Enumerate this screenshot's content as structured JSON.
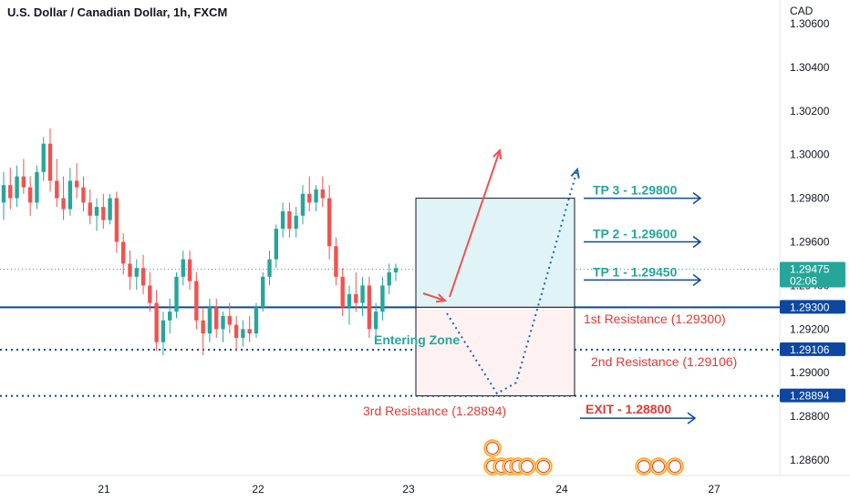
{
  "header": {
    "symbol_title": "U.S. Dollar / Canadian Dollar, 1h, FXCM"
  },
  "axis": {
    "currency": "CAD"
  },
  "colors": {
    "up": "#26a69a",
    "down": "#ef5350",
    "blue": "#0d47a1",
    "teal_text": "#26a69a",
    "red_text": "#e53935"
  },
  "chart_data": {
    "type": "candlestick",
    "title": "U.S. Dollar / Canadian Dollar, 1h, FXCM",
    "ylabel": "CAD",
    "ylim": [
      1.2848,
      1.3068
    ],
    "y_ticks": [
      "1.30600",
      "1.30400",
      "1.30200",
      "1.30000",
      "1.29800",
      "1.29600",
      "1.29400",
      "1.29200",
      "1.29000",
      "1.28800",
      "1.28600"
    ],
    "x_ticks": [
      "21",
      "22",
      "23",
      "24",
      "27"
    ],
    "current_price": "1.29475",
    "countdown": "02:06",
    "price_labels": [
      "1.29300",
      "1.29106",
      "1.28894"
    ],
    "levels": [
      {
        "label": "1st Resistance (1.29300)",
        "value": 1.293
      },
      {
        "label": "2nd Resistance (1.29106)",
        "value": 1.29106
      },
      {
        "label": "3rd Resistance (1.28894)",
        "value": 1.28894
      }
    ],
    "targets": [
      {
        "label": "TP 3 - 1.29800",
        "value": 1.298
      },
      {
        "label": "TP 2 - 1.29600",
        "value": 1.296
      },
      {
        "label": "TP 1 - 1.29450",
        "value": 1.2945
      }
    ],
    "exit": {
      "label": "EXIT - 1.28800",
      "value": 1.288
    },
    "zone_label": "Entering Zone",
    "candles": [
      [
        1.2978,
        1.2992,
        1.297,
        1.2986
      ],
      [
        1.2986,
        1.2994,
        1.2975,
        1.298
      ],
      [
        1.298,
        1.2995,
        1.2976,
        1.299
      ],
      [
        1.299,
        1.2998,
        1.2982,
        1.2985
      ],
      [
        1.2985,
        1.299,
        1.2972,
        1.2978
      ],
      [
        1.2978,
        1.2995,
        1.2975,
        1.2992
      ],
      [
        1.2992,
        1.3008,
        1.2988,
        1.3005
      ],
      [
        1.3005,
        1.3012,
        1.2983,
        1.2988
      ],
      [
        1.2988,
        1.2998,
        1.2976,
        1.298
      ],
      [
        1.298,
        1.299,
        1.297,
        1.2975
      ],
      [
        1.2975,
        1.2994,
        1.2972,
        1.2988
      ],
      [
        1.2988,
        1.2996,
        1.298,
        1.2985
      ],
      [
        1.2985,
        1.299,
        1.2974,
        1.2978
      ],
      [
        1.2978,
        1.2984,
        1.2968,
        1.2972
      ],
      [
        1.2972,
        1.298,
        1.2965,
        1.2976
      ],
      [
        1.2976,
        1.2982,
        1.2966,
        1.297
      ],
      [
        1.297,
        1.2982,
        1.2968,
        1.298
      ],
      [
        1.298,
        1.2983,
        1.2955,
        1.296
      ],
      [
        1.296,
        1.2964,
        1.2945,
        1.295
      ],
      [
        1.295,
        1.2956,
        1.2938,
        1.2944
      ],
      [
        1.2944,
        1.2952,
        1.2938,
        1.2948
      ],
      [
        1.2948,
        1.2954,
        1.2936,
        1.294
      ],
      [
        1.294,
        1.2946,
        1.2928,
        1.2932
      ],
      [
        1.2932,
        1.2938,
        1.291,
        1.2914
      ],
      [
        1.2914,
        1.2928,
        1.2908,
        1.2924
      ],
      [
        1.2924,
        1.2934,
        1.2918,
        1.2928
      ],
      [
        1.2928,
        1.2946,
        1.2925,
        1.2944
      ],
      [
        1.2944,
        1.2956,
        1.294,
        1.2952
      ],
      [
        1.2952,
        1.2956,
        1.2938,
        1.2942
      ],
      [
        1.2942,
        1.2946,
        1.292,
        1.2924
      ],
      [
        1.2924,
        1.293,
        1.2908,
        1.2918
      ],
      [
        1.2918,
        1.2934,
        1.2914,
        1.293
      ],
      [
        1.293,
        1.2934,
        1.2916,
        1.292
      ],
      [
        1.292,
        1.2928,
        1.2914,
        1.2926
      ],
      [
        1.2926,
        1.2932,
        1.2918,
        1.2922
      ],
      [
        1.2922,
        1.2926,
        1.291,
        1.2916
      ],
      [
        1.2916,
        1.2924,
        1.2912,
        1.292
      ],
      [
        1.292,
        1.2926,
        1.2914,
        1.2918
      ],
      [
        1.2918,
        1.2932,
        1.2916,
        1.293
      ],
      [
        1.293,
        1.2946,
        1.2928,
        1.2944
      ],
      [
        1.2944,
        1.2956,
        1.294,
        1.2952
      ],
      [
        1.2952,
        1.2968,
        1.2948,
        1.2966
      ],
      [
        1.2966,
        1.2978,
        1.2962,
        1.2974
      ],
      [
        1.2974,
        1.2978,
        1.2962,
        1.2966
      ],
      [
        1.2966,
        1.2976,
        1.2962,
        1.2972
      ],
      [
        1.2972,
        1.2986,
        1.2968,
        1.2982
      ],
      [
        1.2982,
        1.299,
        1.2974,
        1.2978
      ],
      [
        1.2978,
        1.2986,
        1.2974,
        1.2984
      ],
      [
        1.2984,
        1.299,
        1.2976,
        1.298
      ],
      [
        1.298,
        1.2986,
        1.2952,
        1.2958
      ],
      [
        1.2958,
        1.2962,
        1.294,
        1.2944
      ],
      [
        1.2944,
        1.2948,
        1.2926,
        1.293
      ],
      [
        1.293,
        1.294,
        1.2922,
        1.2936
      ],
      [
        1.2936,
        1.2946,
        1.2928,
        1.2932
      ],
      [
        1.2932,
        1.2944,
        1.2926,
        1.294
      ],
      [
        1.294,
        1.2944,
        1.2916,
        1.292
      ],
      [
        1.292,
        1.2932,
        1.2916,
        1.2928
      ],
      [
        1.2928,
        1.2944,
        1.2924,
        1.294
      ],
      [
        1.294,
        1.295,
        1.2936,
        1.2946
      ],
      [
        1.2946,
        1.295,
        1.2942,
        1.2948
      ]
    ]
  }
}
